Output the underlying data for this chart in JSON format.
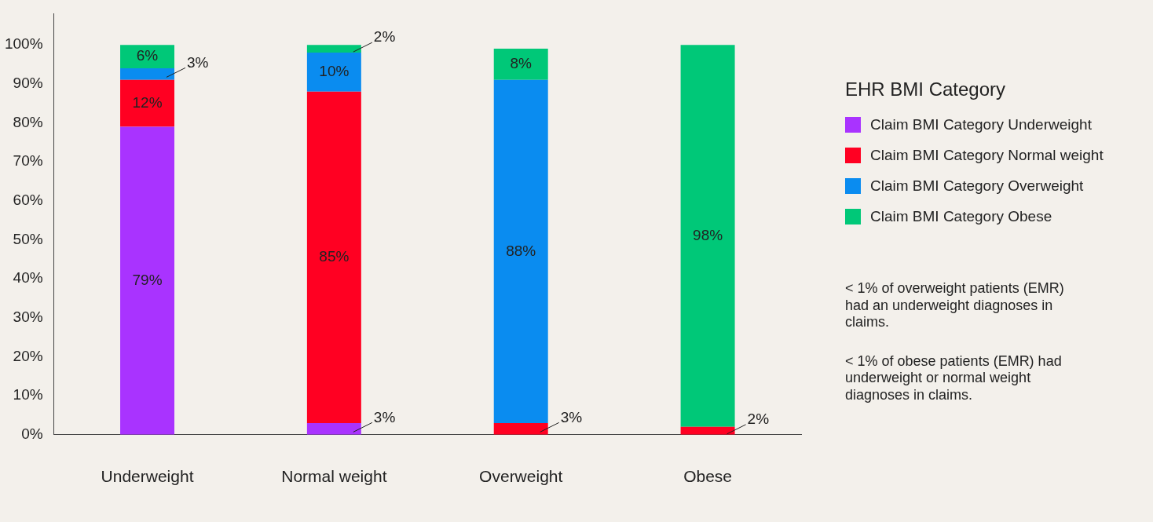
{
  "chart_data": {
    "type": "bar",
    "stacked": true,
    "legend": "right",
    "legend_title": "EHR BMI Category",
    "categories": [
      "Underweight",
      "Normal weight",
      "Overweight",
      "Obese"
    ],
    "series": [
      {
        "name": "Claim BMI Category Underweight",
        "color": "#a933ff",
        "values": [
          79,
          3,
          null,
          null
        ],
        "value_labels": [
          "79%",
          "3%",
          null,
          null
        ]
      },
      {
        "name": "Claim BMI Category Normal weight",
        "color": "#ff0022",
        "values": [
          12,
          85,
          3,
          2
        ],
        "value_labels": [
          "12%",
          "85%",
          "3%",
          "2%"
        ]
      },
      {
        "name": "Claim BMI Category Overweight",
        "color": "#0a8cf0",
        "values": [
          3,
          10,
          88,
          null
        ],
        "value_labels": [
          "3%",
          "10%",
          "88%",
          null
        ]
      },
      {
        "name": "Claim BMI Category Obese",
        "color": "#00c878",
        "values": [
          6,
          2,
          8,
          98
        ],
        "value_labels": [
          "6%",
          "2%",
          "8%",
          "98%"
        ]
      }
    ],
    "ylim": [
      0,
      108
    ],
    "yticks": [
      {
        "value": 0,
        "label": "0%"
      },
      {
        "value": 10,
        "label": "10%"
      },
      {
        "value": 20,
        "label": "20%"
      },
      {
        "value": 30,
        "label": "30%"
      },
      {
        "value": 40,
        "label": "40%"
      },
      {
        "value": 50,
        "label": "50%"
      },
      {
        "value": 60,
        "label": "60%"
      },
      {
        "value": 70,
        "label": "70%"
      },
      {
        "value": 80,
        "label": "80%"
      },
      {
        "value": 90,
        "label": "90%"
      },
      {
        "value": 100,
        "label": "100%"
      }
    ],
    "grid": false,
    "annotations": [
      "< 1% of overweight patients (EMR) had an underweight diagnoses in claims.",
      "< 1% of obese patients (EMR) had underweight or normal weight diagnoses in claims."
    ]
  }
}
